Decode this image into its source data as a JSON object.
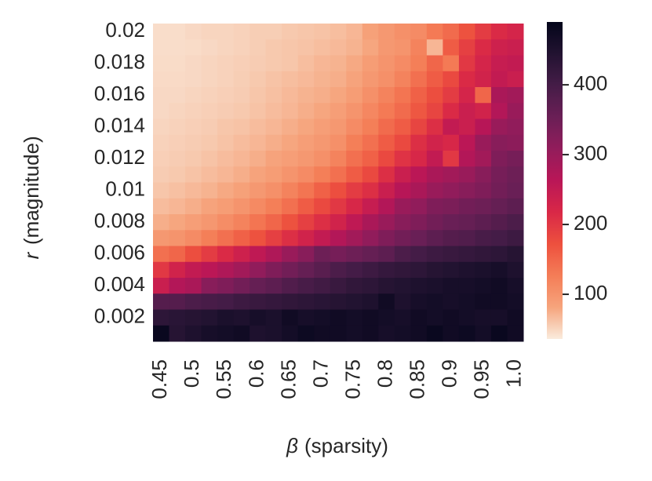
{
  "chart_data": {
    "type": "heatmap",
    "x_label_symbol": "β",
    "x_label_text": "(sparsity)",
    "y_label_symbol": "r",
    "y_label_text": "(magnitude)",
    "x_categories": [
      "0.45",
      null,
      "0.5",
      null,
      "0.55",
      null,
      "0.6",
      null,
      "0.65",
      null,
      "0.7",
      null,
      "0.75",
      null,
      "0.8",
      null,
      "0.85",
      null,
      "0.9",
      null,
      "0.95",
      null,
      "1.0"
    ],
    "y_categories": [
      "0.02",
      null,
      "0.018",
      null,
      "0.016",
      null,
      "0.014",
      null,
      "0.012",
      null,
      "0.01",
      null,
      "0.008",
      null,
      "0.006",
      null,
      "0.004",
      null,
      "0.002",
      null
    ],
    "z": [
      [
        45,
        45,
        48,
        50,
        50,
        52,
        55,
        55,
        58,
        60,
        62,
        65,
        70,
        85,
        95,
        105,
        110,
        130,
        145,
        170,
        195,
        215,
        225
      ],
      [
        45,
        45,
        46,
        48,
        50,
        52,
        55,
        58,
        60,
        62,
        65,
        68,
        72,
        80,
        95,
        100,
        120,
        70,
        160,
        190,
        215,
        235,
        240
      ],
      [
        46,
        46,
        48,
        50,
        52,
        54,
        56,
        58,
        60,
        65,
        70,
        72,
        78,
        90,
        100,
        110,
        125,
        150,
        130,
        200,
        225,
        245,
        250
      ],
      [
        47,
        47,
        48,
        50,
        52,
        55,
        58,
        62,
        65,
        68,
        72,
        75,
        82,
        95,
        105,
        120,
        140,
        160,
        180,
        215,
        230,
        250,
        240
      ],
      [
        48,
        48,
        50,
        52,
        54,
        56,
        60,
        64,
        68,
        72,
        75,
        80,
        90,
        105,
        120,
        135,
        155,
        175,
        195,
        225,
        150,
        280,
        290
      ],
      [
        48,
        50,
        52,
        54,
        56,
        58,
        62,
        66,
        70,
        75,
        80,
        88,
        100,
        115,
        130,
        145,
        165,
        185,
        215,
        240,
        230,
        270,
        300
      ],
      [
        50,
        52,
        54,
        56,
        60,
        62,
        66,
        70,
        75,
        80,
        88,
        95,
        110,
        125,
        145,
        160,
        185,
        210,
        250,
        240,
        265,
        300,
        310
      ],
      [
        52,
        54,
        56,
        58,
        62,
        66,
        70,
        75,
        80,
        88,
        95,
        105,
        125,
        140,
        160,
        180,
        210,
        230,
        220,
        260,
        300,
        320,
        315
      ],
      [
        54,
        56,
        58,
        62,
        66,
        70,
        75,
        82,
        88,
        95,
        105,
        120,
        140,
        155,
        180,
        205,
        220,
        250,
        200,
        270,
        290,
        330,
        340
      ],
      [
        56,
        58,
        62,
        66,
        70,
        75,
        82,
        90,
        100,
        110,
        125,
        140,
        160,
        180,
        210,
        240,
        260,
        280,
        290,
        300,
        320,
        340,
        350
      ],
      [
        60,
        64,
        68,
        72,
        78,
        85,
        95,
        105,
        120,
        135,
        155,
        175,
        195,
        210,
        240,
        265,
        280,
        300,
        310,
        320,
        330,
        345,
        355
      ],
      [
        66,
        70,
        75,
        82,
        90,
        100,
        112,
        125,
        140,
        160,
        180,
        200,
        220,
        245,
        270,
        300,
        310,
        330,
        335,
        345,
        350,
        360,
        370
      ],
      [
        75,
        80,
        88,
        96,
        108,
        120,
        135,
        150,
        170,
        190,
        210,
        230,
        255,
        280,
        300,
        320,
        330,
        345,
        355,
        360,
        370,
        380,
        390
      ],
      [
        95,
        100,
        110,
        125,
        140,
        155,
        170,
        190,
        210,
        230,
        250,
        270,
        290,
        310,
        330,
        345,
        355,
        370,
        380,
        385,
        395,
        400,
        410
      ],
      [
        140,
        150,
        175,
        195,
        215,
        235,
        255,
        275,
        300,
        320,
        350,
        340,
        350,
        360,
        370,
        390,
        400,
        410,
        415,
        420,
        425,
        430,
        440
      ],
      [
        200,
        230,
        250,
        260,
        275,
        290,
        310,
        330,
        345,
        360,
        375,
        390,
        400,
        410,
        420,
        425,
        430,
        440,
        445,
        450,
        455,
        460,
        450
      ],
      [
        240,
        270,
        280,
        320,
        330,
        345,
        360,
        370,
        385,
        395,
        405,
        415,
        425,
        430,
        440,
        445,
        450,
        455,
        460,
        460,
        465,
        470,
        460
      ],
      [
        380,
        380,
        390,
        395,
        400,
        410,
        415,
        420,
        425,
        430,
        435,
        440,
        445,
        450,
        470,
        450,
        460,
        465,
        460,
        465,
        470,
        470,
        465
      ],
      [
        430,
        435,
        440,
        445,
        455,
        450,
        460,
        455,
        470,
        460,
        465,
        470,
        465,
        470,
        465,
        460,
        470,
        465,
        470,
        465,
        460,
        460,
        470
      ],
      [
        480,
        440,
        450,
        460,
        465,
        470,
        450,
        455,
        465,
        475,
        470,
        470,
        465,
        470,
        460,
        465,
        470,
        480,
        470,
        475,
        465,
        480,
        470
      ]
    ],
    "colormap": "rocket_r",
    "clim": [
      36,
      490
    ],
    "cticks": [
      100,
      200,
      300,
      400
    ]
  }
}
